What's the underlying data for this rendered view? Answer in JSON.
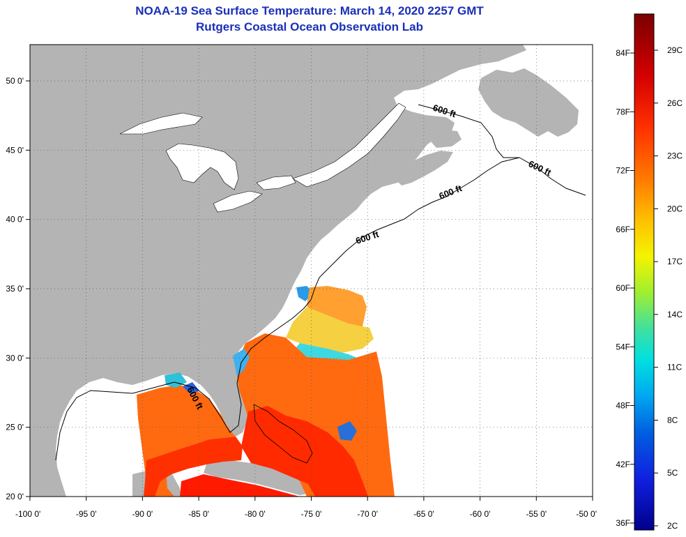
{
  "header": {
    "title": "NOAA-19 Sea Surface Temperature:  March 14, 2020 2257 GMT",
    "subtitle": "Rutgers Coastal Ocean Observation Lab"
  },
  "map": {
    "lon_range": [
      -100,
      -50
    ],
    "lat_range": [
      20,
      52
    ],
    "lon_ticks": [
      {
        "value": -100,
        "label": "-100 0'"
      },
      {
        "value": -95,
        "label": "-95 0'"
      },
      {
        "value": -90,
        "label": "-90 0'"
      },
      {
        "value": -85,
        "label": "-85 0'"
      },
      {
        "value": -80,
        "label": "-80 0'"
      },
      {
        "value": -75,
        "label": "-75 0'"
      },
      {
        "value": -70,
        "label": "-70 0'"
      },
      {
        "value": -65,
        "label": "-65 0'"
      },
      {
        "value": -60,
        "label": "-60 0'"
      },
      {
        "value": -55,
        "label": "-55 0'"
      },
      {
        "value": -50,
        "label": "-50 0'"
      }
    ],
    "lat_ticks": [
      {
        "value": 50,
        "label": "50 0'"
      },
      {
        "value": 45,
        "label": "45 0'"
      },
      {
        "value": 40,
        "label": "40 0'"
      },
      {
        "value": 35,
        "label": "35 0'"
      },
      {
        "value": 30,
        "label": "30 0'"
      },
      {
        "value": 25,
        "label": "25 0'"
      },
      {
        "value": 20,
        "label": "20 0'"
      }
    ],
    "contour_label": "600 ft",
    "colors": {
      "land": "#b4b4b4",
      "lake": "#ffffff",
      "no_data": "#ffffff",
      "grid": "#555555"
    }
  },
  "colorbar": {
    "fahrenheit_labels": [
      "84F",
      "78F",
      "72F",
      "66F",
      "60F",
      "54F",
      "48F",
      "42F",
      "36F"
    ],
    "celsius_labels": [
      "29C",
      "26C",
      "23C",
      "20C",
      "17C",
      "14C",
      "11C",
      "8C",
      "5C",
      "2C"
    ],
    "gradient": [
      "#7a0000",
      "#d40000",
      "#ff3000",
      "#ff7a00",
      "#ffc000",
      "#f4f400",
      "#a0ee30",
      "#40e0a0",
      "#00e0e0",
      "#00a8f0",
      "#0060e0",
      "#1020e0",
      "#00008c"
    ]
  }
}
